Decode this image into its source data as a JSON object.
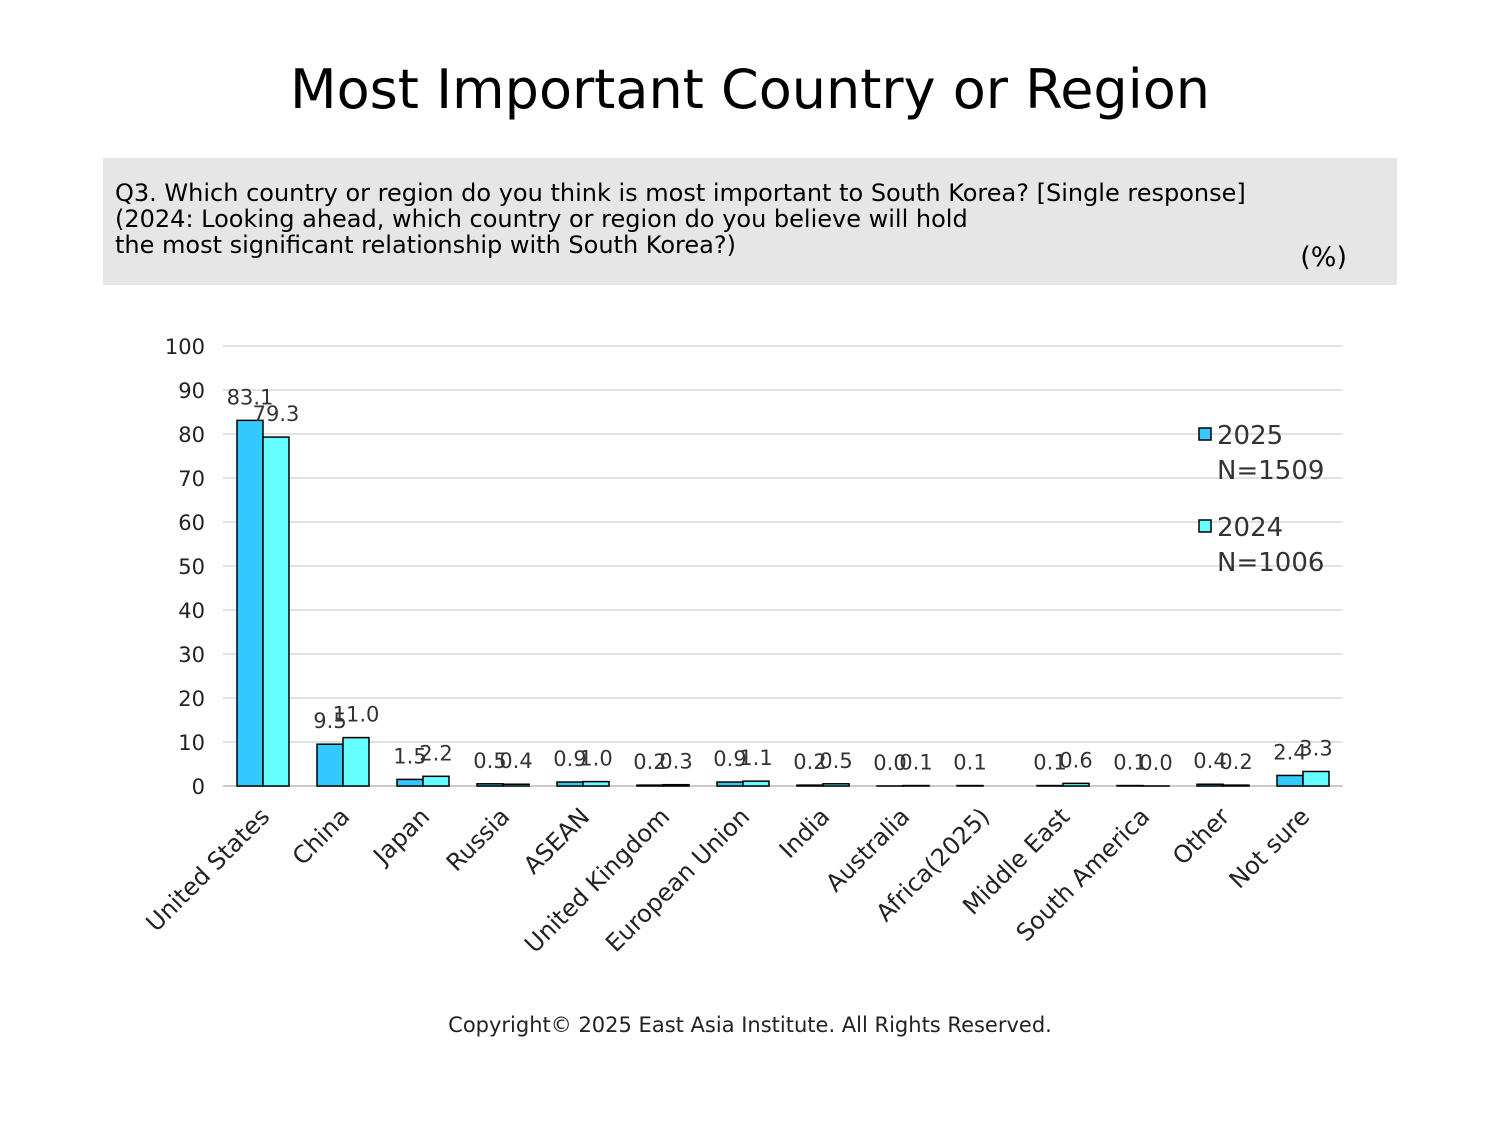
{
  "page": {
    "title": "Most Important Country or Region",
    "question": "Q3. Which country or region do you think is most important to South Korea? [Single response]\n(2024: Looking ahead, which country or region do you believe will hold\nthe most significant relationship with South Korea?)",
    "unit": "(%)",
    "copyright": "Copyright© 2025 East Asia Institute. All Rights Reserved."
  },
  "chart_data": {
    "type": "bar",
    "categories": [
      "United States",
      "China",
      "Japan",
      "Russia",
      "ASEAN",
      "United Kingdom",
      "European Union",
      "India",
      "Australia",
      "Africa(2025)",
      "Middle East",
      "South America",
      "Other",
      "Not sure"
    ],
    "series": [
      {
        "name": "2025",
        "legend_sub": "N=1509",
        "color": "#33c9ff",
        "values": [
          83.1,
          9.5,
          1.5,
          0.5,
          0.9,
          0.2,
          0.9,
          0.2,
          0.0,
          0.1,
          0.1,
          0.1,
          0.4,
          2.4
        ],
        "labels": [
          "83.1",
          "9.5",
          "1.5",
          "0.5",
          "0.9",
          "0.2",
          "0.9",
          "0.2",
          "0.0",
          "0.1",
          "0.1",
          "0.1",
          "0.4",
          "2.4"
        ]
      },
      {
        "name": "2024",
        "legend_sub": "N=1006",
        "color": "#66ffff",
        "values": [
          79.3,
          11.0,
          2.2,
          0.4,
          1.0,
          0.3,
          1.1,
          0.5,
          0.1,
          null,
          0.6,
          0.0,
          0.2,
          3.3
        ],
        "labels": [
          "79.3",
          "11.0",
          "2.2",
          "0.4",
          "1.0",
          "0.3",
          "1.1",
          "0.5",
          "0.1",
          "",
          "0.6",
          "0.0",
          "0.2",
          "3.3"
        ]
      }
    ],
    "ylim": [
      0,
      100
    ],
    "yticks": [
      "0",
      "10",
      "20",
      "30",
      "40",
      "50",
      "60",
      "70",
      "80",
      "90",
      "100"
    ],
    "grid": true,
    "legend_position": "right"
  }
}
